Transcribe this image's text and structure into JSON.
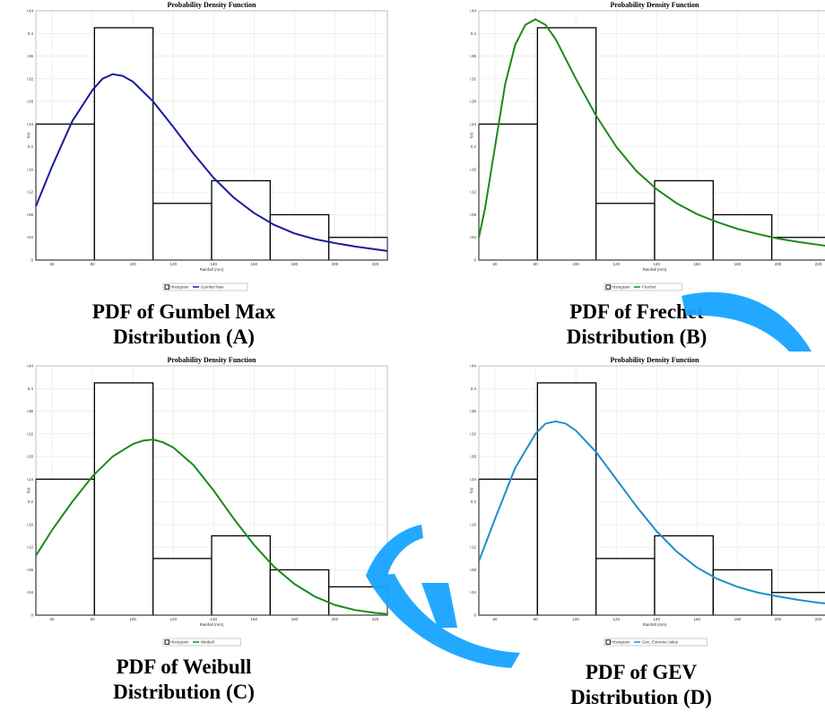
{
  "colors": {
    "watermark": "#16a4ff",
    "histogram": "#000000"
  },
  "panels": [
    {
      "caption_line1": "PDF of Gumbel Max",
      "caption_line2": "Distribution (A)",
      "legend_hist": "Histogram",
      "legend_curve": "Gumbel Max",
      "curve_color": "#1a1a9e"
    },
    {
      "caption_line1": "PDF of Frechet",
      "caption_line2": "Distribution (B)",
      "legend_hist": "Histogram",
      "legend_curve": "Frechet",
      "curve_color": "#1a8a1a"
    },
    {
      "caption_line1": "PDF of Weibull",
      "caption_line2": "Distribution (C)",
      "legend_hist": "Histogram",
      "legend_curve": "Weibull",
      "curve_color": "#1a8a1a"
    },
    {
      "caption_line1": "PDF of GEV",
      "caption_line2": "Distribution (D)",
      "legend_hist": "Histogram",
      "legend_curve": "Gen. Extreme Value",
      "curve_color": "#1f8fc8"
    }
  ],
  "chart_data": [
    {
      "type": "bar+line",
      "title": "Probability Density Function",
      "xlabel": "Rainfall (mm)",
      "ylabel": "f(x)",
      "xlim": [
        52,
        226
      ],
      "ylim": [
        0,
        0.44
      ],
      "xticks": [
        60,
        80,
        100,
        120,
        140,
        160,
        180,
        200,
        220
      ],
      "yticks": [
        0,
        0.04,
        0.08,
        0.12,
        0.16,
        0.2,
        0.24,
        0.28,
        0.32,
        0.36,
        0.4,
        0.44
      ],
      "ytick_labels": [
        "0",
        "0.04",
        "0.08",
        "0.12",
        "0.16",
        "0.2",
        "0.24",
        "0.28",
        "0.32",
        "0.36",
        "0.4",
        "0.44"
      ],
      "grid": true,
      "legend_position": "bottom",
      "histogram": {
        "edges": [
          52,
          81,
          110,
          139,
          168,
          197,
          226
        ],
        "heights": [
          0.24,
          0.41,
          0.1,
          0.14,
          0.08,
          0.04
        ]
      },
      "series": [
        {
          "name": "Gumbel Max",
          "x": [
            52,
            60,
            70,
            80,
            85,
            90,
            95,
            100,
            110,
            120,
            130,
            140,
            150,
            160,
            170,
            180,
            190,
            200,
            210,
            220,
            226
          ],
          "y": [
            0.095,
            0.165,
            0.245,
            0.3,
            0.32,
            0.328,
            0.325,
            0.315,
            0.28,
            0.235,
            0.188,
            0.145,
            0.11,
            0.083,
            0.062,
            0.047,
            0.037,
            0.03,
            0.024,
            0.019,
            0.016
          ]
        }
      ]
    },
    {
      "type": "bar+line",
      "title": "Probability Density Function",
      "xlabel": "Rainfall (mm)",
      "ylabel": "f(x)",
      "xlim": [
        52,
        226
      ],
      "ylim": [
        0,
        0.44
      ],
      "xticks": [
        60,
        80,
        100,
        120,
        140,
        160,
        180,
        200,
        220
      ],
      "yticks": [
        0,
        0.04,
        0.08,
        0.12,
        0.16,
        0.2,
        0.24,
        0.28,
        0.32,
        0.36,
        0.4,
        0.44
      ],
      "ytick_labels": [
        "0",
        "0.04",
        "0.08",
        "0.12",
        "0.16",
        "0.2",
        "0.24",
        "0.28",
        "0.32",
        "0.36",
        "0.4",
        "0.44"
      ],
      "grid": true,
      "legend_position": "bottom",
      "histogram": {
        "edges": [
          52,
          81,
          110,
          139,
          168,
          197,
          226
        ],
        "heights": [
          0.24,
          0.41,
          0.1,
          0.14,
          0.08,
          0.04
        ]
      },
      "series": [
        {
          "name": "Frechet",
          "x": [
            52,
            55,
            60,
            65,
            70,
            75,
            80,
            85,
            90,
            95,
            100,
            110,
            120,
            130,
            140,
            150,
            160,
            170,
            180,
            190,
            200,
            210,
            220,
            226
          ],
          "y": [
            0.04,
            0.09,
            0.2,
            0.31,
            0.38,
            0.415,
            0.425,
            0.415,
            0.39,
            0.355,
            0.32,
            0.255,
            0.2,
            0.157,
            0.125,
            0.1,
            0.081,
            0.067,
            0.055,
            0.046,
            0.038,
            0.032,
            0.027,
            0.024
          ]
        }
      ]
    },
    {
      "type": "bar+line",
      "title": "Probability Density Function",
      "xlabel": "Rainfall (mm)",
      "ylabel": "f(x)",
      "xlim": [
        52,
        226
      ],
      "ylim": [
        0,
        0.44
      ],
      "xticks": [
        60,
        80,
        100,
        120,
        140,
        160,
        180,
        200,
        220
      ],
      "yticks": [
        0,
        0.04,
        0.08,
        0.12,
        0.16,
        0.2,
        0.24,
        0.28,
        0.32,
        0.36,
        0.4,
        0.44
      ],
      "ytick_labels": [
        "0",
        "0.04",
        "0.08",
        "0.12",
        "0.16",
        "0.2",
        "0.24",
        "0.28",
        "0.32",
        "0.36",
        "0.4",
        "0.44"
      ],
      "grid": true,
      "legend_position": "bottom",
      "histogram": {
        "edges": [
          52,
          81,
          110,
          139,
          168,
          197,
          226
        ],
        "heights": [
          0.24,
          0.41,
          0.1,
          0.14,
          0.08,
          0.05
        ]
      },
      "series": [
        {
          "name": "Weibull",
          "x": [
            52,
            60,
            70,
            80,
            90,
            100,
            105,
            110,
            115,
            120,
            130,
            140,
            150,
            160,
            170,
            180,
            190,
            200,
            210,
            220,
            226
          ],
          "y": [
            0.105,
            0.15,
            0.2,
            0.245,
            0.28,
            0.302,
            0.308,
            0.31,
            0.305,
            0.296,
            0.265,
            0.22,
            0.17,
            0.124,
            0.085,
            0.055,
            0.033,
            0.018,
            0.009,
            0.004,
            0.002
          ]
        }
      ]
    },
    {
      "type": "bar+line",
      "title": "Probability Density Function",
      "xlabel": "Rainfall (mm)",
      "ylabel": "f(x)",
      "xlim": [
        52,
        226
      ],
      "ylim": [
        0,
        0.44
      ],
      "xticks": [
        60,
        80,
        100,
        120,
        140,
        160,
        180,
        200,
        220
      ],
      "yticks": [
        0,
        0.04,
        0.08,
        0.12,
        0.16,
        0.2,
        0.24,
        0.28,
        0.32,
        0.36,
        0.4,
        0.44
      ],
      "ytick_labels": [
        "0",
        "0.04",
        "0.08",
        "0.12",
        "0.16",
        "0.2",
        "0.24",
        "0.28",
        "0.32",
        "0.36",
        "0.4",
        "0.44"
      ],
      "grid": true,
      "legend_position": "bottom",
      "histogram": {
        "edges": [
          52,
          81,
          110,
          139,
          168,
          197,
          226
        ],
        "heights": [
          0.24,
          0.41,
          0.1,
          0.14,
          0.08,
          0.04
        ]
      },
      "series": [
        {
          "name": "Gen. Extreme Value",
          "x": [
            52,
            60,
            70,
            80,
            85,
            90,
            95,
            100,
            110,
            120,
            130,
            140,
            150,
            160,
            170,
            180,
            190,
            200,
            210,
            220,
            226
          ],
          "y": [
            0.095,
            0.17,
            0.26,
            0.32,
            0.338,
            0.342,
            0.338,
            0.326,
            0.288,
            0.24,
            0.192,
            0.148,
            0.112,
            0.084,
            0.064,
            0.05,
            0.04,
            0.033,
            0.027,
            0.022,
            0.02
          ]
        }
      ]
    }
  ]
}
